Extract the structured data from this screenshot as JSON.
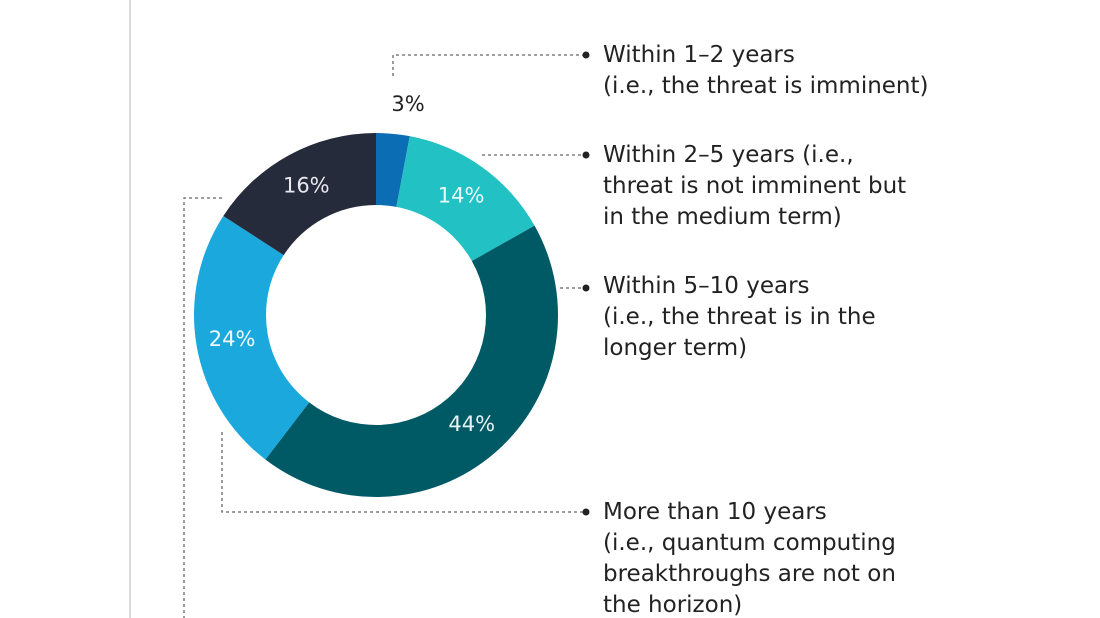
{
  "chart_data": {
    "type": "donut",
    "categories": [
      "Within 1–2 years\n(i.e., the threat is imminent)",
      "Within 2–5 years (i.e.,\nthreat is not imminent but\nin the medium term)",
      "Within 5–10 years\n(i.e., the threat is in the\nlonger term)",
      "More than 10 years\n(i.e., quantum computing\nbreakthroughs are not on\nthe horizon)",
      null
    ],
    "values": [
      3,
      14,
      44,
      24,
      16
    ],
    "value_labels": [
      "3%",
      "14%",
      "44%",
      "24%",
      "16%"
    ],
    "colors": [
      "#0b6db3",
      "#22c1c3",
      "#005a66",
      "#1ba8dd",
      "#262b3b"
    ]
  }
}
